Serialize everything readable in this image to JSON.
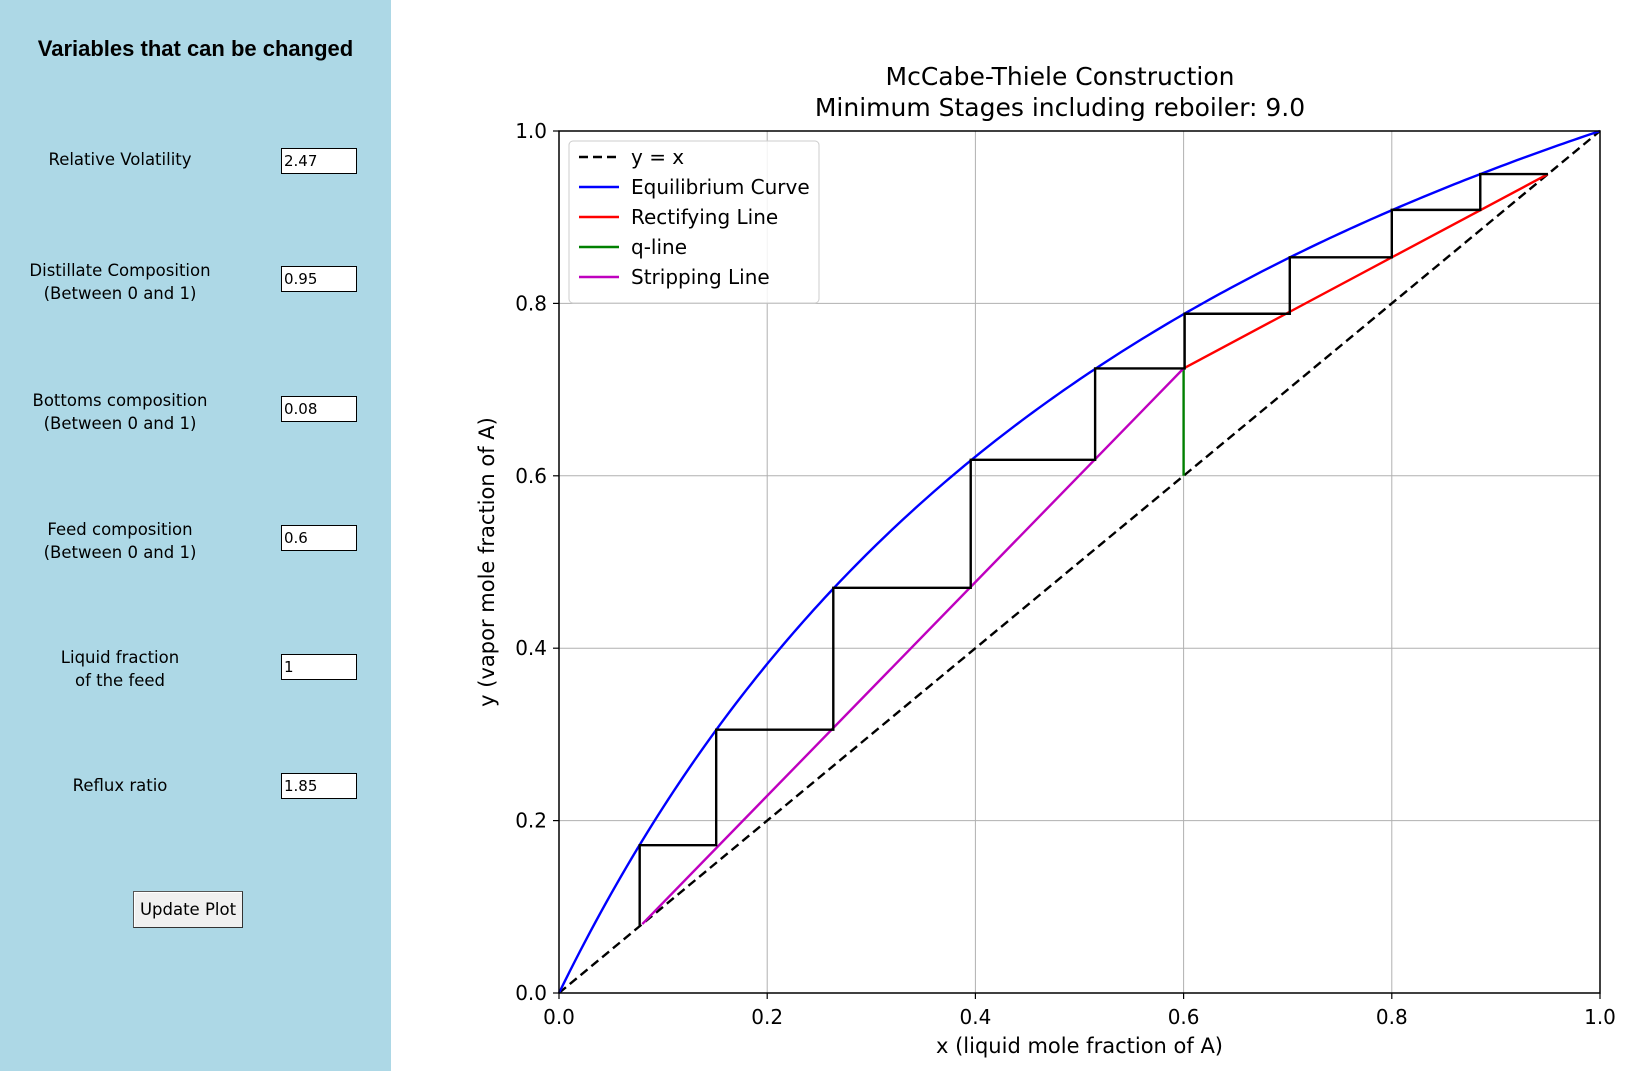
{
  "sidebar": {
    "title": "Variables that can be changed",
    "fields": [
      {
        "line1": "Relative Volatility",
        "line2": "",
        "value": "2.47"
      },
      {
        "line1": "Distillate Composition",
        "line2": "(Between 0 and 1)",
        "value": "0.95"
      },
      {
        "line1": "Bottoms composition",
        "line2": "(Between 0 and 1)",
        "value": "0.08"
      },
      {
        "line1": "Feed composition",
        "line2": "(Between 0 and 1)",
        "value": "0.6"
      },
      {
        "line1": "Liquid fraction",
        "line2": "of the feed",
        "value": "1"
      },
      {
        "line1": "Reflux ratio",
        "line2": "",
        "value": "1.85"
      }
    ],
    "update_button": "Update Plot"
  },
  "chart_data": {
    "type": "line",
    "title": "McCabe-Thiele Construction",
    "subtitle": "Minimum Stages including reboiler: 9.0",
    "xlabel": "x (liquid mole fraction of A)",
    "ylabel": "y (vapor mole fraction of A)",
    "xlim": [
      0,
      1
    ],
    "ylim": [
      0,
      1
    ],
    "xticks": [
      "0.0",
      "0.2",
      "0.4",
      "0.6",
      "0.8",
      "1.0"
    ],
    "yticks": [
      "0.0",
      "0.2",
      "0.4",
      "0.6",
      "0.8",
      "1.0"
    ],
    "grid": true,
    "legend_position": "upper-left",
    "alpha": 2.47,
    "series": [
      {
        "name": "y = x",
        "color": "#000000",
        "style": "dashed",
        "points": [
          [
            0,
            0
          ],
          [
            1,
            1
          ]
        ]
      },
      {
        "name": "Equilibrium Curve",
        "color": "#0000ff",
        "style": "solid",
        "curve": "equilibrium",
        "x_range": [
          0,
          1
        ]
      },
      {
        "name": "Rectifying Line",
        "color": "#ff0000",
        "style": "solid",
        "points": [
          [
            0.6,
            0.7246
          ],
          [
            0.95,
            0.95
          ]
        ]
      },
      {
        "name": "q-line",
        "color": "#008000",
        "style": "solid",
        "points": [
          [
            0.6,
            0.6
          ],
          [
            0.6,
            0.7246
          ]
        ]
      },
      {
        "name": "Stripping Line",
        "color": "#bf00bf",
        "style": "solid",
        "points": [
          [
            0.08,
            0.08
          ],
          [
            0.6,
            0.7246
          ]
        ]
      }
    ],
    "stages": {
      "color": "#000000",
      "points": [
        [
          0.95,
          0.95
        ],
        [
          0.885,
          0.95
        ],
        [
          0.885,
          0.9085
        ],
        [
          0.8,
          0.9085
        ],
        [
          0.8,
          0.8535
        ],
        [
          0.702,
          0.8535
        ],
        [
          0.702,
          0.788
        ],
        [
          0.601,
          0.788
        ],
        [
          0.601,
          0.7245
        ],
        [
          0.515,
          0.7245
        ],
        [
          0.515,
          0.6185
        ],
        [
          0.3955,
          0.6185
        ],
        [
          0.3955,
          0.47
        ],
        [
          0.2635,
          0.47
        ],
        [
          0.2635,
          0.3055
        ],
        [
          0.151,
          0.3055
        ],
        [
          0.151,
          0.1715
        ],
        [
          0.0775,
          0.1715
        ],
        [
          0.0775,
          0.077
        ]
      ]
    }
  }
}
